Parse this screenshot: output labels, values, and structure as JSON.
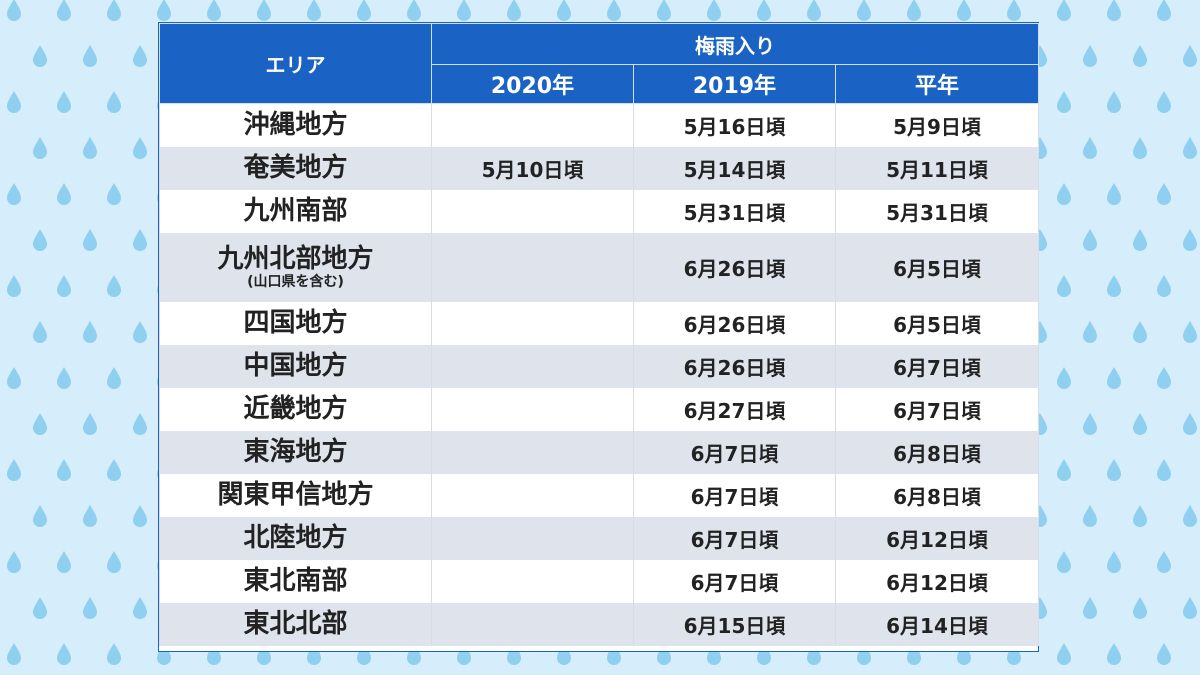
{
  "table": {
    "header_area": "エリア",
    "header_group": "梅雨入り",
    "columns": [
      "2020年",
      "2019年",
      "平年"
    ],
    "rows": [
      {
        "area": "沖縄地方",
        "sub": "",
        "y2020": "",
        "y2019": "5月16日頃",
        "normal": "5月9日頃"
      },
      {
        "area": "奄美地方",
        "sub": "",
        "y2020": "5月10日頃",
        "y2019": "5月14日頃",
        "normal": "5月11日頃"
      },
      {
        "area": "九州南部",
        "sub": "",
        "y2020": "",
        "y2019": "5月31日頃",
        "normal": "5月31日頃"
      },
      {
        "area": "九州北部地方",
        "sub": "(山口県を含む)",
        "y2020": "",
        "y2019": "6月26日頃",
        "normal": "6月5日頃"
      },
      {
        "area": "四国地方",
        "sub": "",
        "y2020": "",
        "y2019": "6月26日頃",
        "normal": "6月5日頃"
      },
      {
        "area": "中国地方",
        "sub": "",
        "y2020": "",
        "y2019": "6月26日頃",
        "normal": "6月7日頃"
      },
      {
        "area": "近畿地方",
        "sub": "",
        "y2020": "",
        "y2019": "6月27日頃",
        "normal": "6月7日頃"
      },
      {
        "area": "東海地方",
        "sub": "",
        "y2020": "",
        "y2019": "6月7日頃",
        "normal": "6月8日頃"
      },
      {
        "area": "関東甲信地方",
        "sub": "",
        "y2020": "",
        "y2019": "6月7日頃",
        "normal": "6月8日頃"
      },
      {
        "area": "北陸地方",
        "sub": "",
        "y2020": "",
        "y2019": "6月7日頃",
        "normal": "6月12日頃"
      },
      {
        "area": "東北南部",
        "sub": "",
        "y2020": "",
        "y2019": "6月7日頃",
        "normal": "6月12日頃"
      },
      {
        "area": "東北北部",
        "sub": "",
        "y2020": "",
        "y2019": "6月15日頃",
        "normal": "6月14日頃"
      }
    ]
  },
  "colors": {
    "background": "#d6edfb",
    "raindrop": "#8fd0f0",
    "header": "#1a62c4",
    "row_alt": "#dfe4ec"
  },
  "decoration": {
    "background_icon": "raindrop-icon"
  }
}
